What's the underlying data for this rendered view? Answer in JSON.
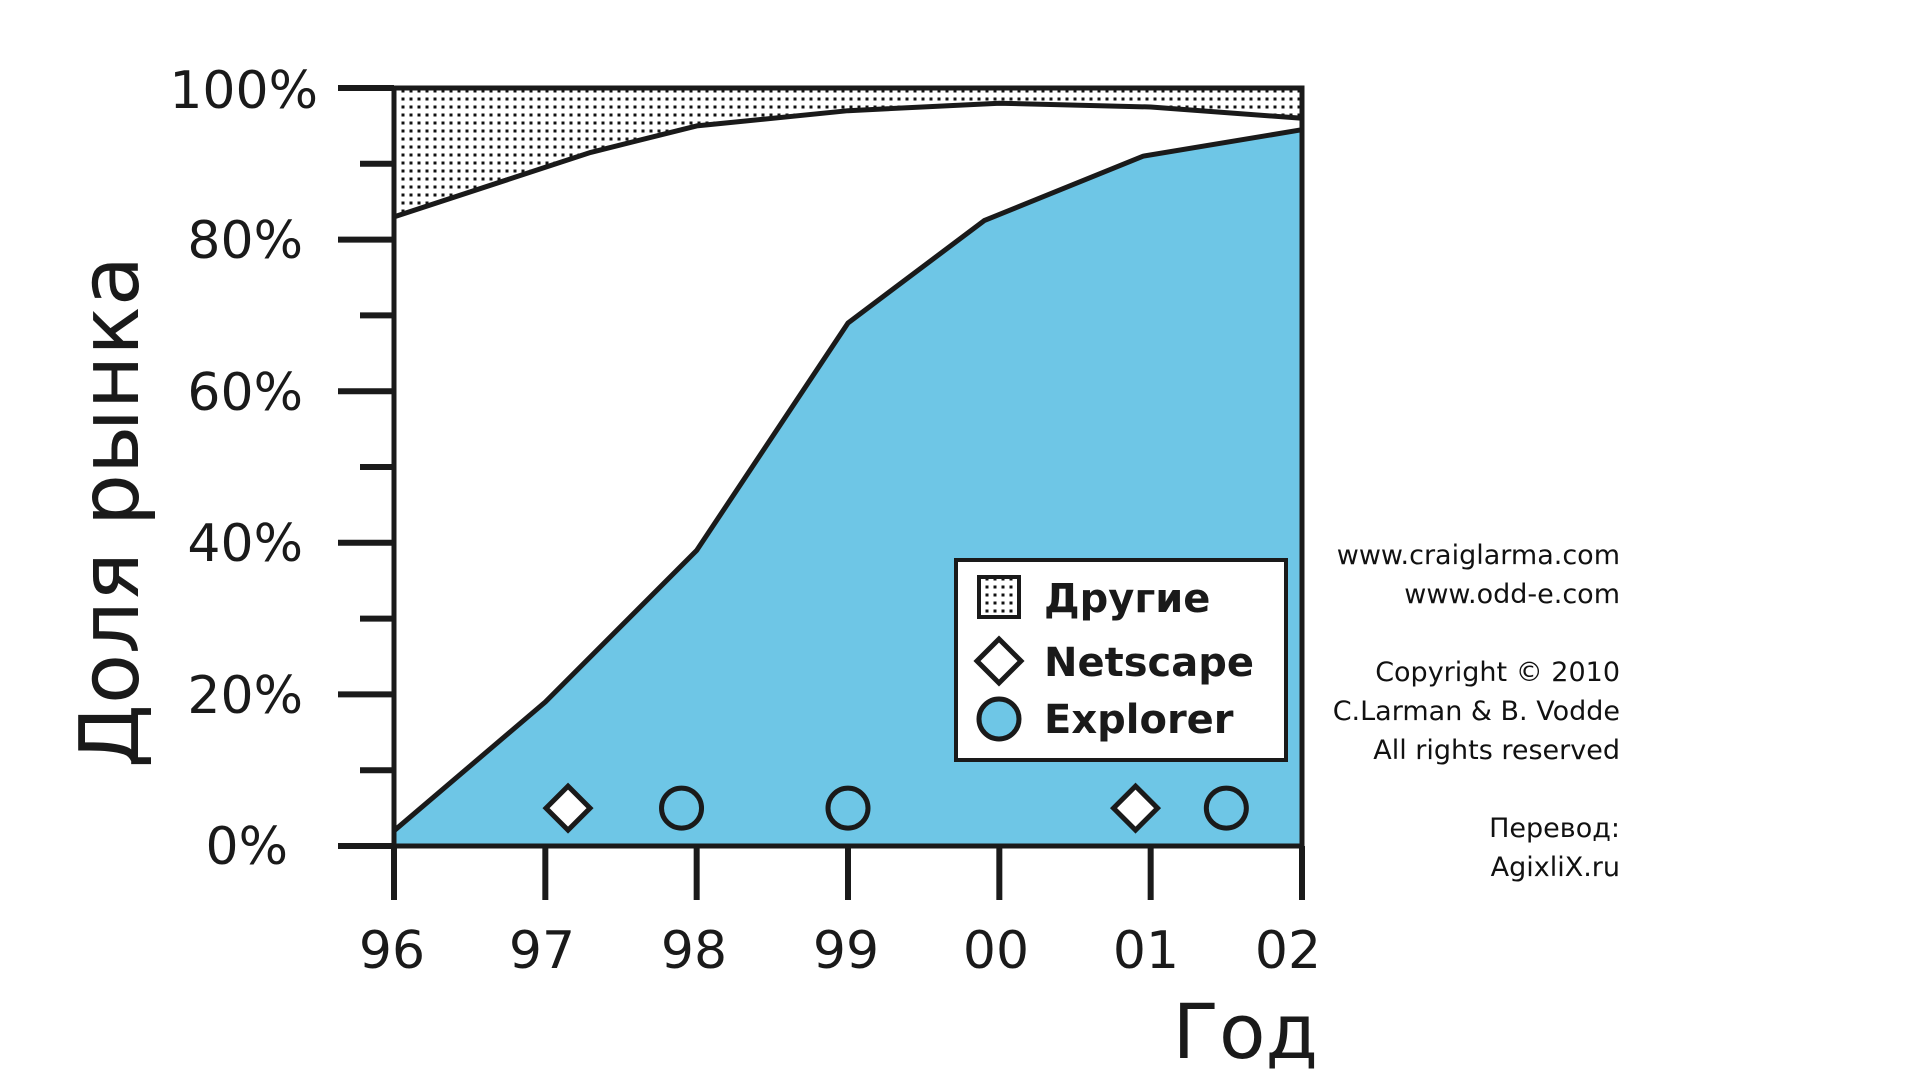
{
  "chart_data": {
    "type": "area",
    "xlabel": "Год",
    "ylabel": "Доля рынка",
    "x": [
      "96",
      "97",
      "98",
      "99",
      "00",
      "01",
      "02"
    ],
    "ylim": [
      0,
      100
    ],
    "yticks": [
      "0%",
      "20%",
      "40%",
      "60%",
      "80%",
      "100%"
    ],
    "series": [
      {
        "name": "Explorer",
        "role": "lower_boundary",
        "x": [
          96,
          97,
          98,
          99,
          99.9,
          100.95,
          102
        ],
        "values": [
          2,
          19,
          39,
          69,
          82.5,
          91,
          94.5
        ]
      },
      {
        "name": "Netscape",
        "role": "upper_boundary",
        "x": [
          96,
          97.3,
          98,
          99,
          100,
          101,
          102
        ],
        "values": [
          83,
          91.5,
          95,
          97,
          98,
          97.5,
          96
        ]
      },
      {
        "name": "Другие",
        "role": "remainder_to_100"
      }
    ],
    "markers": [
      {
        "series": "Netscape",
        "shape": "diamond",
        "x": 97.15,
        "y": 5
      },
      {
        "series": "Explorer",
        "shape": "circle",
        "x": 97.9,
        "y": 5
      },
      {
        "series": "Explorer",
        "shape": "circle",
        "x": 99.0,
        "y": 5
      },
      {
        "series": "Netscape",
        "shape": "diamond",
        "x": 100.9,
        "y": 5
      },
      {
        "series": "Explorer",
        "shape": "circle",
        "x": 101.5,
        "y": 5
      }
    ],
    "legend": {
      "placement": "bottom-right-inside",
      "items": [
        {
          "label": "Другие",
          "symbol": "dotted-square"
        },
        {
          "label": "Netscape",
          "symbol": "diamond"
        },
        {
          "label": "Explorer",
          "symbol": "circle"
        }
      ]
    },
    "colors": {
      "explorer": "#6ec6e6",
      "others_pattern": "#111111",
      "stroke": "#1a1a1a"
    }
  },
  "credits": {
    "line1": "www.craiglarma.com",
    "line2": "www.odd-e.com",
    "line3": "Copyright © 2010",
    "line4": "C.Larman & B. Vodde",
    "line5": "All rights reserved",
    "line6": "Перевод:",
    "line7": "AgixliX.ru"
  }
}
